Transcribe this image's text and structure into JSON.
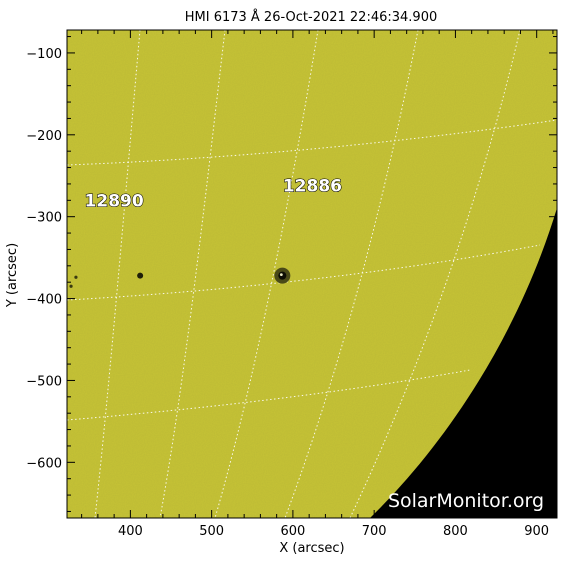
{
  "title": "HMI 6173 Å 26-Oct-2021 22:46:34.900",
  "x_axis": {
    "label": "X (arcsec)",
    "range": [
      322,
      925
    ],
    "ticks": [
      400,
      500,
      600,
      700,
      800,
      900
    ]
  },
  "y_axis": {
    "label": "Y (arcsec)",
    "range": [
      -668,
      -72
    ],
    "ticks": [
      -100,
      -200,
      -300,
      -400,
      -500,
      -600
    ]
  },
  "regions": [
    {
      "label": "12890",
      "x": 380,
      "y": -280
    },
    {
      "label": "12886",
      "x": 624,
      "y": -262
    }
  ],
  "sunspots": [
    {
      "x": 587,
      "y": -372,
      "size": "large"
    },
    {
      "x": 412,
      "y": -372,
      "size": "small"
    },
    {
      "x": 333,
      "y": -374,
      "size": "tiny"
    },
    {
      "x": 327,
      "y": -385,
      "size": "tiny"
    }
  ],
  "watermark": "SolarMonitor.org",
  "colors": {
    "disk": "#c7c434",
    "space": "#000000",
    "grid": "#ffffff",
    "background": "#ffffff"
  }
}
